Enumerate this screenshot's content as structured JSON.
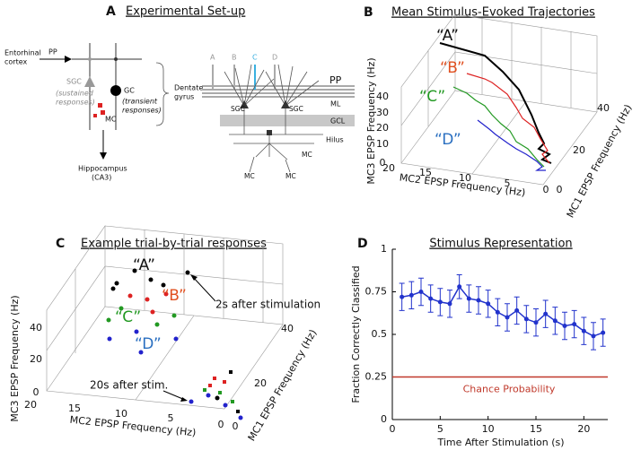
{
  "panel_a": {
    "label": "A",
    "title": "Experimental Set-up",
    "labels": [
      "Entorhinal",
      "cortex",
      "PP",
      "SGC",
      "(sustained",
      "responses)",
      "GC",
      "(transient",
      "responses)",
      "MC",
      "Dentate",
      "gyrus",
      "Hippocampus",
      "(CA3)",
      "A",
      "B",
      "C",
      "D",
      "PP",
      "ML",
      "GCL",
      "Hilus",
      "SGC",
      "SGC",
      "MC",
      "MC",
      "MC"
    ]
  },
  "panel_b": {
    "label": "B",
    "title": "Mean Stimulus-Evoked Trajectories",
    "z_label": "MC3 EPSP Frequency (Hz)",
    "x_label": "MC2 EPSP Frequency (Hz)",
    "y_label": "MC1 EPSP Frequency (Hz)",
    "z_ticks": [
      0,
      10,
      20,
      30,
      40
    ],
    "x_ticks": [
      20,
      15,
      10,
      5,
      0
    ],
    "y_ticks": [
      0,
      20,
      40
    ],
    "series_labels": [
      "“A”",
      "“B”",
      "“C”",
      "“D”"
    ]
  },
  "panel_c": {
    "label": "C",
    "title": "Example trial-by-trial responses",
    "z_label": "MC3 EPSP Frequency (Hz)",
    "x_label": "MC2 EPSP Frequency (Hz)",
    "y_label": "MC1 EPSP Frequency (Hz)",
    "z_ticks": [
      0,
      20,
      40
    ],
    "x_ticks": [
      20,
      15,
      10,
      5,
      0
    ],
    "y_ticks": [
      0,
      20,
      40
    ],
    "series_labels": [
      "“A”",
      "“B”",
      "“C”",
      "“D”"
    ],
    "annotations": [
      "2s after stimulation",
      "20s after stim."
    ]
  },
  "chart_data": {
    "type": "line",
    "panel_label": "D",
    "title": "Stimulus Representation",
    "x_label": "Time After Stimulation (s)",
    "y_label": "Fraction Correctly Classified",
    "x": [
      1,
      2,
      3,
      4,
      5,
      6,
      7,
      8,
      9,
      10,
      11,
      12,
      13,
      14,
      15,
      16,
      17,
      18,
      19,
      20,
      21,
      22
    ],
    "values": [
      0.72,
      0.73,
      0.75,
      0.71,
      0.69,
      0.68,
      0.78,
      0.71,
      0.7,
      0.68,
      0.63,
      0.6,
      0.64,
      0.59,
      0.57,
      0.62,
      0.58,
      0.55,
      0.56,
      0.52,
      0.49,
      0.51
    ],
    "errors": [
      0.08,
      0.08,
      0.08,
      0.08,
      0.08,
      0.08,
      0.07,
      0.08,
      0.08,
      0.08,
      0.08,
      0.08,
      0.08,
      0.08,
      0.08,
      0.08,
      0.08,
      0.08,
      0.08,
      0.08,
      0.08,
      0.08
    ],
    "color": "#2233cc",
    "chance_line": {
      "value": 0.25,
      "label": "Chance Probability",
      "color": "#c0392b"
    },
    "xlim": [
      0,
      22.5
    ],
    "xticks": [
      0,
      5,
      10,
      15,
      20
    ],
    "ylim": [
      0,
      1
    ],
    "yticks": [
      0,
      0.25,
      0.5,
      0.75,
      1
    ]
  }
}
